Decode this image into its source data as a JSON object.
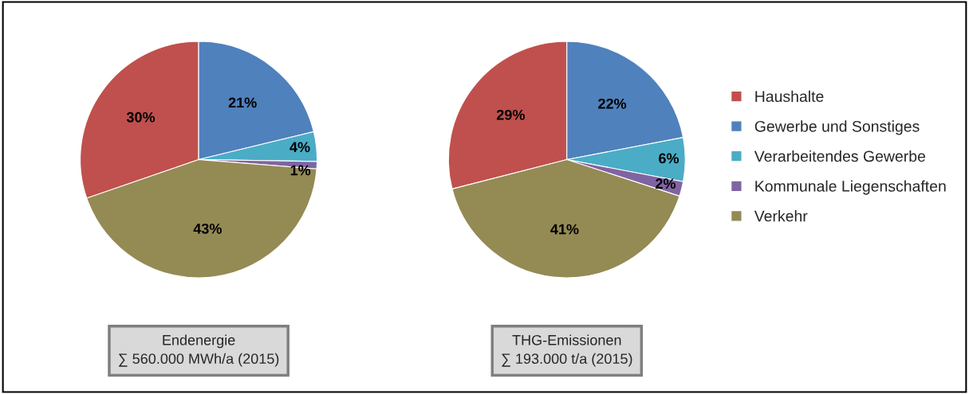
{
  "chart_data": [
    {
      "type": "pie",
      "title": "Endenergie\n∑ 560.000 MWh/a (2015)",
      "categories": [
        "Haushalte",
        "Gewerbe und Sonstiges",
        "Verarbeitendes Gewerbe",
        "Kommunale Liegenschaften",
        "Verkehr"
      ],
      "values": [
        30,
        21,
        4,
        1,
        43
      ],
      "colors": [
        "#c0504d",
        "#4f81bd",
        "#4bacc6",
        "#8064a2",
        "#948a54"
      ],
      "value_labels": [
        "30%",
        "21%",
        "4%",
        "1%",
        "43%"
      ],
      "legend": "right"
    },
    {
      "type": "pie",
      "title": "THG-Emissionen\n∑ 193.000 t/a (2015)",
      "categories": [
        null,
        null,
        null,
        null,
        null
      ],
      "values": [
        29,
        22,
        6,
        2,
        41
      ],
      "colors": [
        "#c0504d",
        "#4f81bd",
        "#4bacc6",
        "#8064a2",
        "#948a54"
      ],
      "value_labels": [
        "29%",
        "22%",
        "6%",
        "2%",
        "41%"
      ]
    }
  ]
}
